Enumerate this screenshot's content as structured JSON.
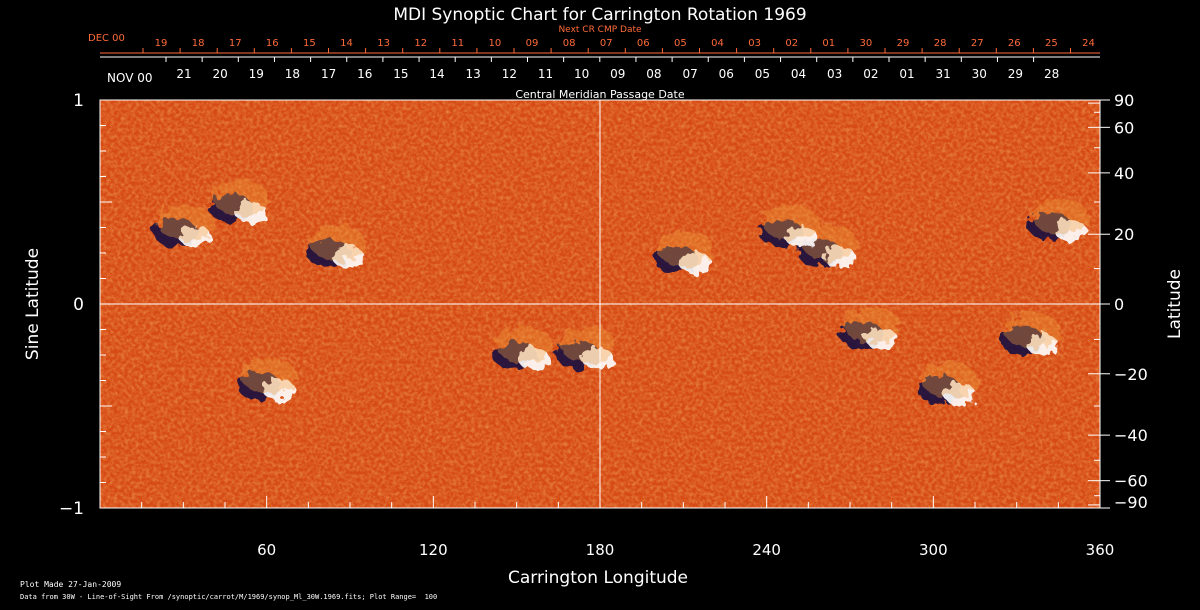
{
  "chart_data": {
    "type": "heatmap",
    "title": "MDI Synoptic Chart for Carrington Rotation 1969",
    "xlabel": "Carrington Longitude",
    "ylabel_left": "Sine Latitude",
    "ylabel_right": "Latitude",
    "xlim": [
      0,
      360
    ],
    "ylim": [
      -1,
      1
    ],
    "x_ticks": [
      60,
      120,
      180,
      240,
      300,
      360
    ],
    "y_ticks_left": [
      {
        "value": 1,
        "label": "1"
      },
      {
        "value": 0,
        "label": "0"
      },
      {
        "value": -1,
        "label": "−1"
      }
    ],
    "y_ticks_right": [
      90,
      60,
      40,
      20,
      0,
      -20,
      -40,
      -60,
      -90
    ],
    "top_axis_next": {
      "label": "Next CR CMP Date",
      "month_label": "DEC 00",
      "ticks": [
        "19",
        "18",
        "17",
        "16",
        "15",
        "14",
        "13",
        "12",
        "11",
        "10",
        "09",
        "08",
        "07",
        "06",
        "05",
        "04",
        "03",
        "02",
        "01",
        "30",
        "29",
        "28",
        "27",
        "26",
        "25",
        "24"
      ]
    },
    "top_axis_cmp": {
      "label": "Central Meridian Passage Date",
      "month_label": "NOV 00",
      "ticks": [
        "21",
        "20",
        "19",
        "18",
        "17",
        "16",
        "15",
        "14",
        "13",
        "12",
        "11",
        "10",
        "09",
        "08",
        "07",
        "06",
        "05",
        "04",
        "03",
        "02",
        "01",
        "31",
        "30",
        "29",
        "28"
      ]
    },
    "colormap": [
      "#1a1240",
      "#c83a0c",
      "#ffffff"
    ],
    "background_color": "#d64a14",
    "regions": [
      {
        "lon": 30,
        "sinlat": 0.35,
        "polarity": "mixed"
      },
      {
        "lon": 50,
        "sinlat": 0.47,
        "polarity": "mixed"
      },
      {
        "lon": 85,
        "sinlat": 0.25,
        "polarity": "mixed"
      },
      {
        "lon": 152,
        "sinlat": -0.25,
        "polarity": "mixed"
      },
      {
        "lon": 175,
        "sinlat": -0.25,
        "polarity": "mixed"
      },
      {
        "lon": 60,
        "sinlat": -0.4,
        "polarity": "mixed"
      },
      {
        "lon": 210,
        "sinlat": 0.22,
        "polarity": "mixed"
      },
      {
        "lon": 262,
        "sinlat": 0.25,
        "polarity": "mixed"
      },
      {
        "lon": 248,
        "sinlat": 0.35,
        "polarity": "mixed"
      },
      {
        "lon": 305,
        "sinlat": -0.42,
        "polarity": "mixed"
      },
      {
        "lon": 277,
        "sinlat": -0.15,
        "polarity": "mixed"
      },
      {
        "lon": 345,
        "sinlat": 0.38,
        "polarity": "mixed"
      },
      {
        "lon": 335,
        "sinlat": -0.18,
        "polarity": "mixed"
      }
    ]
  },
  "footer": {
    "plot_made": "Plot Made 27-Jan-2009",
    "data_source": "Data from 30W - Line-of-Sight From /synoptic/carrot/M/1969/synop_Ml_30W.1969.fits; Plot Range=  100"
  }
}
